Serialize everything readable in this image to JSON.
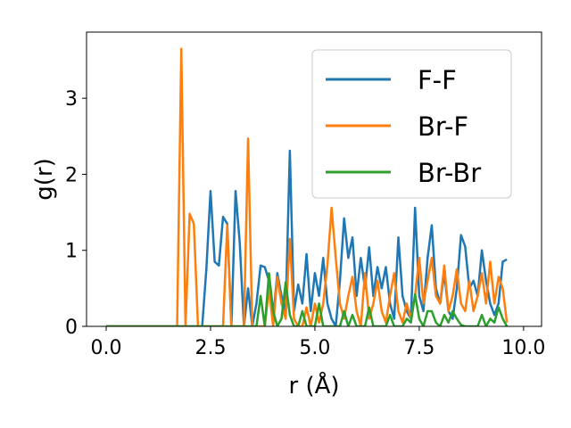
{
  "chart_data": {
    "type": "line",
    "xlabel": "r (Å)",
    "ylabel": "g(r)",
    "x": [
      0,
      0.1,
      0.2,
      0.3,
      0.4,
      0.5,
      0.6,
      0.7,
      0.8,
      0.9,
      1.0,
      1.1,
      1.2,
      1.3,
      1.4,
      1.5,
      1.6,
      1.7,
      1.8,
      1.9,
      2.0,
      2.1,
      2.2,
      2.3,
      2.4,
      2.5,
      2.6,
      2.7,
      2.8,
      2.9,
      3.0,
      3.1,
      3.2,
      3.3,
      3.4,
      3.5,
      3.6,
      3.7,
      3.8,
      3.9,
      4.0,
      4.1,
      4.2,
      4.3,
      4.4,
      4.5,
      4.6,
      4.7,
      4.8,
      4.9,
      5.0,
      5.1,
      5.2,
      5.3,
      5.4,
      5.5,
      5.6,
      5.7,
      5.8,
      5.9,
      6.0,
      6.1,
      6.2,
      6.3,
      6.4,
      6.5,
      6.6,
      6.7,
      6.8,
      6.9,
      7.0,
      7.1,
      7.2,
      7.3,
      7.4,
      7.5,
      7.6,
      7.7,
      7.8,
      7.9,
      8.0,
      8.1,
      8.2,
      8.3,
      8.4,
      8.5,
      8.6,
      8.7,
      8.8,
      8.9,
      9.0,
      9.1,
      9.2,
      9.3,
      9.4,
      9.5,
      9.6
    ],
    "series": [
      {
        "name": "F-F",
        "color": "#1f77b4",
        "values": [
          0,
          0,
          0,
          0,
          0,
          0,
          0,
          0,
          0,
          0,
          0,
          0,
          0,
          0,
          0,
          0,
          0,
          0,
          0,
          0,
          0,
          0,
          0,
          0,
          0.75,
          1.78,
          0.85,
          0.8,
          1.44,
          1.35,
          0,
          1.78,
          1.1,
          0,
          0.5,
          0,
          0.3,
          0.8,
          0.78,
          0.6,
          0.1,
          0.7,
          0.4,
          0.2,
          2.31,
          0.2,
          0.55,
          0.3,
          0.95,
          0.2,
          0.7,
          0.4,
          0.9,
          0.3,
          0.1,
          0,
          0.6,
          1.42,
          0.9,
          1.17,
          0.4,
          0.9,
          0.5,
          1.04,
          0.4,
          0.78,
          0.5,
          0.78,
          0.3,
          0.1,
          1.17,
          0.4,
          0.2,
          0.1,
          1.56,
          0.4,
          0.2,
          0.9,
          1.33,
          0.5,
          0.3,
          0.7,
          0.2,
          0.1,
          0.5,
          1.2,
          1.05,
          0.5,
          0.6,
          0.4,
          1.0,
          0.6,
          0.3,
          0.15,
          0.3,
          0.85,
          0.88
        ]
      },
      {
        "name": "Br-F",
        "color": "#ff7f0e",
        "values": [
          0,
          0,
          0,
          0,
          0,
          0,
          0,
          0,
          0,
          0,
          0,
          0,
          0,
          0,
          0,
          0,
          0,
          0,
          3.65,
          0,
          1.48,
          1.35,
          0,
          0,
          0,
          0,
          0,
          0,
          0,
          1.33,
          0,
          0,
          0,
          0,
          2.47,
          0,
          0,
          0,
          0,
          0.5,
          0,
          0.65,
          0.3,
          0.1,
          1.15,
          0.1,
          0,
          0,
          0.25,
          0,
          0.3,
          0.05,
          0.3,
          0.8,
          1.56,
          0.9,
          0.3,
          0.1,
          0.4,
          0.65,
          0.2,
          0,
          0.7,
          0.1,
          0.3,
          0.6,
          0.2,
          0.05,
          0.4,
          0.7,
          0.2,
          0.05,
          0.3,
          0.1,
          0.4,
          0.9,
          0.3,
          0.6,
          0.9,
          0.4,
          0.3,
          0.8,
          0.2,
          0.4,
          0.75,
          0.3,
          0.2,
          0.6,
          0.2,
          0.4,
          0.7,
          0.3,
          0.85,
          0.3,
          0.65,
          0.5,
          0.05
        ]
      },
      {
        "name": "Br-Br",
        "color": "#2ca02c",
        "values": [
          0,
          0,
          0,
          0,
          0,
          0,
          0,
          0,
          0,
          0,
          0,
          0,
          0,
          0,
          0,
          0,
          0,
          0,
          0,
          0,
          0,
          0,
          0,
          0,
          0,
          0,
          0,
          0,
          0,
          0,
          0,
          0,
          0,
          0,
          0,
          0,
          0,
          0.4,
          0,
          0.7,
          0.2,
          0,
          0.1,
          0.58,
          0.15,
          0,
          0,
          0.2,
          0,
          0,
          0,
          0.3,
          0,
          0,
          0,
          0,
          0,
          0.2,
          0,
          0.15,
          0,
          0,
          0,
          0.25,
          0,
          0,
          0,
          0,
          0.15,
          0,
          0,
          0,
          0.1,
          0.05,
          0.42,
          0.1,
          0,
          0.2,
          0.2,
          0.05,
          0,
          0.15,
          0.05,
          0.2,
          0.1,
          0.02,
          0,
          0,
          0,
          0,
          0.15,
          0,
          0.1,
          0.05,
          0.25,
          0.1,
          0
        ]
      }
    ],
    "xlim": [
      -0.47,
      10.43
    ],
    "ylim": [
      0,
      3.87
    ],
    "xticks": [
      {
        "value": 0,
        "label": "0.0"
      },
      {
        "value": 2.5,
        "label": "2.5"
      },
      {
        "value": 5,
        "label": "5.0"
      },
      {
        "value": 7.5,
        "label": "7.5"
      },
      {
        "value": 10,
        "label": "10.0"
      }
    ],
    "yticks": [
      0,
      1,
      2,
      3
    ],
    "legend": "upper right"
  }
}
